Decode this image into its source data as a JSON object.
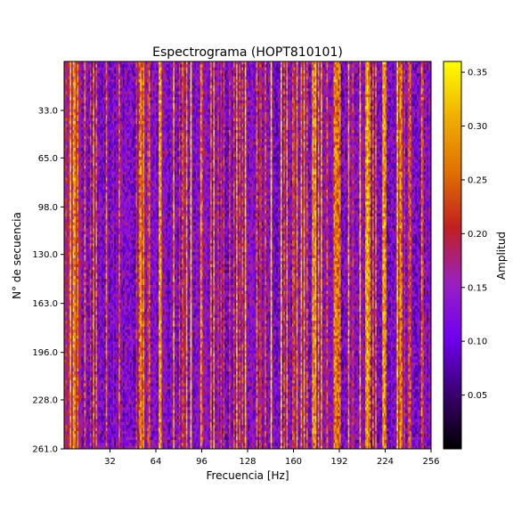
{
  "chart_data": {
    "type": "heatmap",
    "title": "Espectrograma (HOPT810101)",
    "xlabel": "Frecuencia [Hz]",
    "ylabel": "N° de secuencia",
    "xlim": [
      0,
      256
    ],
    "ylim": [
      0,
      261
    ],
    "y_inverted": true,
    "x_ticks": [
      {
        "value": 32,
        "label": "32"
      },
      {
        "value": 64,
        "label": "64"
      },
      {
        "value": 96,
        "label": "96"
      },
      {
        "value": 128,
        "label": "128"
      },
      {
        "value": 160,
        "label": "160"
      },
      {
        "value": 192,
        "label": "192"
      },
      {
        "value": 224,
        "label": "224"
      },
      {
        "value": 256,
        "label": "256"
      }
    ],
    "y_ticks": [
      {
        "value": 33,
        "label": "33.0"
      },
      {
        "value": 65,
        "label": "65.0"
      },
      {
        "value": 98,
        "label": "98.0"
      },
      {
        "value": 130,
        "label": "130.0"
      },
      {
        "value": 163,
        "label": "163.0"
      },
      {
        "value": 196,
        "label": "196.0"
      },
      {
        "value": 228,
        "label": "228.0"
      },
      {
        "value": 261,
        "label": "261.0"
      }
    ],
    "colorbar": {
      "label": "Amplitud",
      "colormap": "gnuplot",
      "range": [
        0.0,
        0.36
      ],
      "ticks": [
        {
          "value": 0.05,
          "label": "0.05"
        },
        {
          "value": 0.1,
          "label": "0.10"
        },
        {
          "value": 0.15,
          "label": "0.15"
        },
        {
          "value": 0.2,
          "label": "0.20"
        },
        {
          "value": 0.25,
          "label": "0.25"
        },
        {
          "value": 0.3,
          "label": "0.30"
        },
        {
          "value": 0.35,
          "label": "0.35"
        }
      ]
    },
    "grid": false,
    "colormap_stops": [
      "#000000",
      "#3a0070",
      "#7000f0",
      "#9a20c0",
      "#c02020",
      "#e07000",
      "#f0b000",
      "#ffff00"
    ]
  }
}
